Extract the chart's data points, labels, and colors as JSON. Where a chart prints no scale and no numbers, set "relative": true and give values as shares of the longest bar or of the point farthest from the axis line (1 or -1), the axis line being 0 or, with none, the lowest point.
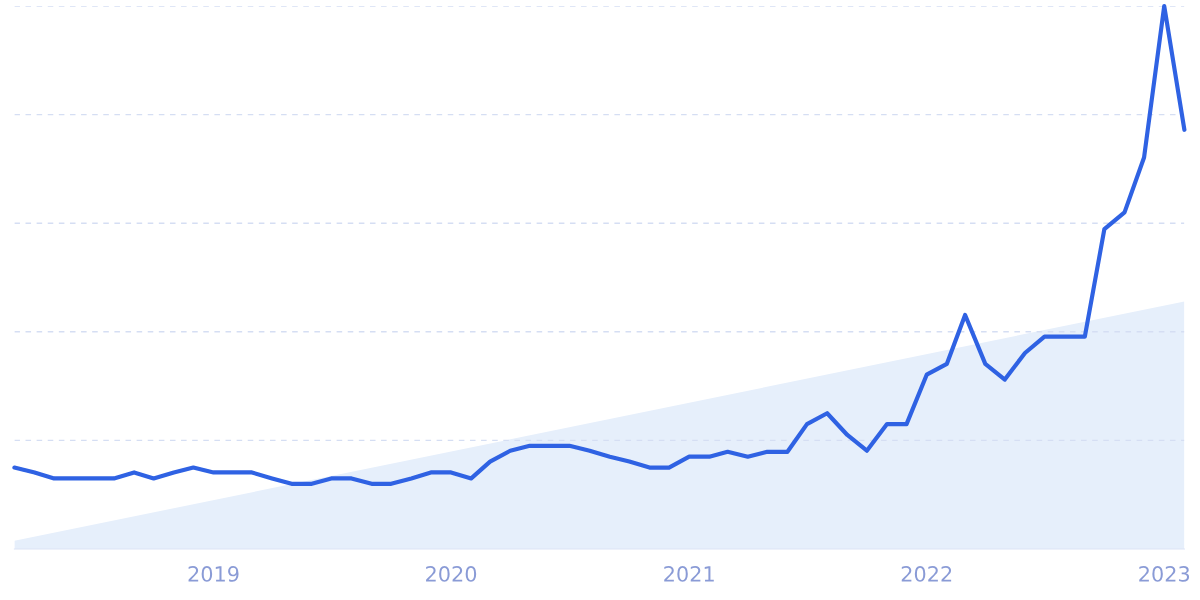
{
  "chart_data": {
    "type": "line",
    "relative": true,
    "x": [
      "2018-03",
      "2018-04",
      "2018-05",
      "2018-06",
      "2018-07",
      "2018-08",
      "2018-09",
      "2018-10",
      "2018-11",
      "2018-12",
      "2019-01",
      "2019-02",
      "2019-03",
      "2019-04",
      "2019-05",
      "2019-06",
      "2019-07",
      "2019-08",
      "2019-09",
      "2019-10",
      "2019-11",
      "2019-12",
      "2020-01",
      "2020-02",
      "2020-03",
      "2020-04",
      "2020-05",
      "2020-06",
      "2020-07",
      "2020-08",
      "2020-09",
      "2020-10",
      "2020-11",
      "2020-12",
      "2021-01",
      "2021-02",
      "2021-03",
      "2021-04",
      "2021-05",
      "2021-06",
      "2021-07",
      "2021-08",
      "2021-09",
      "2021-10",
      "2021-11",
      "2021-12",
      "2022-01",
      "2022-02",
      "2022-03",
      "2022-04",
      "2022-05",
      "2022-06",
      "2022-07",
      "2022-08",
      "2022-09",
      "2022-10",
      "2022-11",
      "2022-12",
      "2023-01",
      "2023-02"
    ],
    "series": [
      {
        "type": "area",
        "color": "#e6effb",
        "x": [
          "2018-03",
          "2023-02"
        ],
        "values": [
          0.015,
          0.456
        ]
      },
      {
        "color": "#2f62e3",
        "values": [
          0.15,
          0.141,
          0.13,
          0.13,
          0.13,
          0.13,
          0.141,
          0.13,
          0.141,
          0.15,
          0.141,
          0.141,
          0.141,
          0.13,
          0.12,
          0.12,
          0.13,
          0.13,
          0.12,
          0.12,
          0.13,
          0.141,
          0.141,
          0.13,
          0.161,
          0.181,
          0.19,
          0.19,
          0.19,
          0.181,
          0.17,
          0.161,
          0.15,
          0.15,
          0.17,
          0.17,
          0.179,
          0.17,
          0.179,
          0.179,
          0.23,
          0.25,
          0.21,
          0.181,
          0.23,
          0.23,
          0.321,
          0.341,
          0.431,
          0.341,
          0.312,
          0.361,
          0.391,
          0.391,
          0.391,
          0.589,
          0.62,
          0.721,
          1,
          0.772
        ]
      }
    ],
    "xlim": [
      "2018-03",
      "2023-02"
    ],
    "xticks": [
      {
        "value": "2019",
        "label": "2019"
      },
      {
        "value": "2020",
        "label": "2020"
      },
      {
        "value": "2021",
        "label": "2021"
      },
      {
        "value": "2022",
        "label": "2022"
      },
      {
        "value": "2023",
        "label": "2023"
      }
    ],
    "grid": "y",
    "marker": "none",
    "line_style": "solid"
  }
}
